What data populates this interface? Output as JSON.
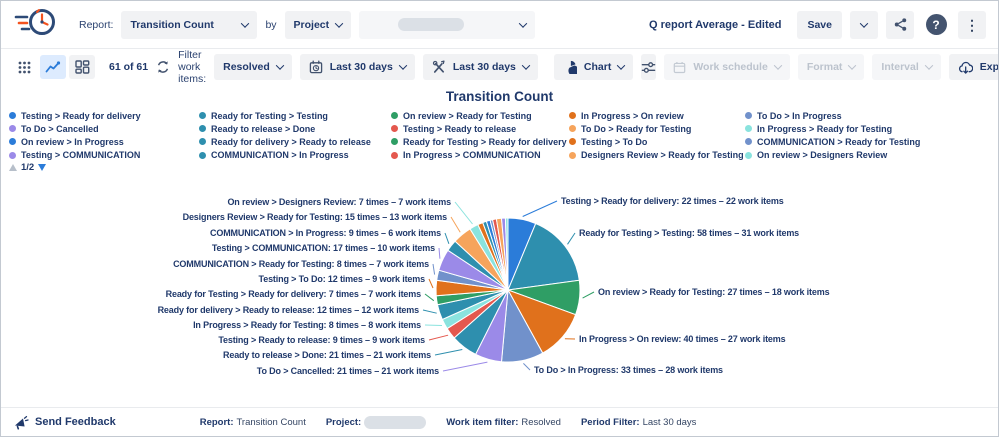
{
  "header": {
    "report_label": "Report:",
    "report_value": "Transition Count",
    "by_label": "by",
    "group_value": "Project",
    "saved_name": "Q report Average - Edited",
    "save_label": "Save",
    "help_glyph": "?",
    "more_glyph": "⋮"
  },
  "toolbar": {
    "count_text": "61 of 61",
    "filter_label": "Filter work items:",
    "status_filter_value": "Resolved",
    "created_period_value": "Last 30 days",
    "resolved_period_value": "Last 30 days",
    "chart_label": "Chart",
    "work_schedule_label": "Work schedule",
    "format_label": "Format",
    "interval_label": "Interval",
    "export_label": "Export"
  },
  "legend": {
    "pagination": "1/2",
    "items": [
      {
        "label": "Testing > Ready for delivery",
        "color": "#2b7cd9"
      },
      {
        "label": "To Do > Cancelled",
        "color": "#9b8ae8"
      },
      {
        "label": "On review > In Progress",
        "color": "#2b7cd9"
      },
      {
        "label": "Testing > COMMUNICATION",
        "color": "#9b8ae8"
      },
      {
        "label": "Ready for Testing > Testing",
        "color": "#2e8fae"
      },
      {
        "label": "Ready to release > Done",
        "color": "#2e8fae"
      },
      {
        "label": "Ready for delivery > Ready to release",
        "color": "#2e8fae"
      },
      {
        "label": "COMMUNICATION > In Progress",
        "color": "#2e8fae"
      },
      {
        "label": "On review > Ready for Testing",
        "color": "#2f9e65"
      },
      {
        "label": "Testing > Ready to release",
        "color": "#e4584e"
      },
      {
        "label": "Ready for Testing > Ready for delivery",
        "color": "#2f9e65"
      },
      {
        "label": "In Progress > COMMUNICATION",
        "color": "#e4584e"
      },
      {
        "label": "In Progress > On review",
        "color": "#e0711c"
      },
      {
        "label": "To Do > Ready for Testing",
        "color": "#f6a45c"
      },
      {
        "label": "Testing > To Do",
        "color": "#e0711c"
      },
      {
        "label": "Designers Review > Ready for Testing",
        "color": "#f6a45c"
      },
      {
        "label": "To Do > In Progress",
        "color": "#7191cb"
      },
      {
        "label": "In Progress > Ready for Testing",
        "color": "#8ae3de"
      },
      {
        "label": "COMMUNICATION > Ready for Testing",
        "color": "#7191cb"
      },
      {
        "label": "On review > Designers Review",
        "color": "#8ae3de"
      }
    ]
  },
  "chart_data": {
    "type": "pie",
    "title": "Transition Count",
    "legend_position": "top",
    "slices": [
      {
        "name": "Testing > Ready for delivery",
        "times": 22,
        "work_items": 22,
        "color": "#2b7cd9",
        "label": "Testing > Ready for delivery: 22 times – 22 work items"
      },
      {
        "name": "Ready for Testing > Testing",
        "times": 58,
        "work_items": 31,
        "color": "#2e8fae",
        "label": "Ready for Testing > Testing: 58 times – 31 work items"
      },
      {
        "name": "On review > Ready for Testing",
        "times": 27,
        "work_items": 18,
        "color": "#2f9e65",
        "label": "On review > Ready for Testing: 27 times – 18 work items"
      },
      {
        "name": "In Progress > On review",
        "times": 40,
        "work_items": 27,
        "color": "#e0711c",
        "label": "In Progress > On review: 40 times – 27 work items"
      },
      {
        "name": "To Do > In Progress",
        "times": 33,
        "work_items": 28,
        "color": "#7191cb",
        "label": "To Do > In Progress: 33 times – 28 work items"
      },
      {
        "name": "To Do > Cancelled",
        "times": 21,
        "work_items": 21,
        "color": "#9b8ae8",
        "label": "To Do > Cancelled: 21 times – 21 work items"
      },
      {
        "name": "Ready to release > Done",
        "times": 21,
        "work_items": 21,
        "color": "#2e8fae",
        "label": "Ready to release > Done: 21 times – 21 work items"
      },
      {
        "name": "Testing > Ready to release",
        "times": 9,
        "work_items": 9,
        "color": "#e4584e",
        "label": "Testing > Ready to release: 9 times – 9 work items"
      },
      {
        "name": "In Progress > Ready for Testing",
        "times": 8,
        "work_items": 8,
        "color": "#8ae3de",
        "label": "In Progress > Ready for Testing: 8 times – 8 work items"
      },
      {
        "name": "Ready for delivery > Ready to release",
        "times": 12,
        "work_items": 12,
        "color": "#2e8fae",
        "label": "Ready for delivery > Ready to release: 12 times – 12 work items"
      },
      {
        "name": "Ready for Testing > Ready for delivery",
        "times": 7,
        "work_items": 7,
        "color": "#2f9e65",
        "label": "Ready for Testing > Ready for delivery: 7 times – 7 work items"
      },
      {
        "name": "Testing > To Do",
        "times": 12,
        "work_items": 9,
        "color": "#e0711c",
        "label": "Testing > To Do: 12 times – 9 work items"
      },
      {
        "name": "COMMUNICATION > Ready for Testing",
        "times": 8,
        "work_items": 7,
        "color": "#7191cb",
        "label": "COMMUNICATION > Ready for Testing: 8 times – 7 work items"
      },
      {
        "name": "Testing > COMMUNICATION",
        "times": 17,
        "work_items": 10,
        "color": "#9b8ae8",
        "label": "Testing > COMMUNICATION: 17 times – 10 work items"
      },
      {
        "name": "COMMUNICATION > In Progress",
        "times": 9,
        "work_items": 6,
        "color": "#2e8fae",
        "label": "COMMUNICATION > In Progress: 9 times – 6 work items"
      },
      {
        "name": "Designers Review > Ready for Testing",
        "times": 15,
        "work_items": 13,
        "color": "#f6a45c",
        "label": "Designers Review > Ready for Testing: 15 times – 13 work items"
      },
      {
        "name": "On review > Designers Review",
        "times": 7,
        "work_items": 7,
        "color": "#8ae3de",
        "label": "On review > Designers Review: 7 times – 7 work items"
      }
    ],
    "unlabeled_slivers_estimated": [
      {
        "color": "#e0711c",
        "value": 4
      },
      {
        "color": "#2e8fae",
        "value": 3
      },
      {
        "color": "#2b7cd9",
        "value": 3
      },
      {
        "color": "#7191cb",
        "value": 2
      },
      {
        "color": "#e4584e",
        "value": 3
      },
      {
        "color": "#f6a45c",
        "value": 4
      },
      {
        "color": "#9b8ae8",
        "value": 3
      },
      {
        "color": "#8ae3de",
        "value": 2
      }
    ]
  },
  "footer": {
    "send_feedback": "Send Feedback",
    "report_label": "Report:",
    "report_value": "Transition Count",
    "project_label": "Project:",
    "work_item_filter_label": "Work item filter:",
    "work_item_filter_value": "Resolved",
    "period_filter_label": "Period Filter:",
    "period_filter_value": "Last 30 days"
  }
}
